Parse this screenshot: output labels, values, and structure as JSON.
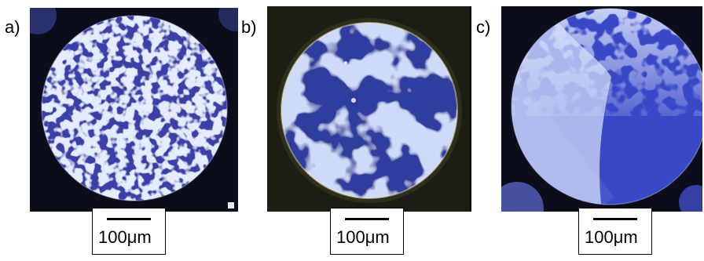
{
  "figure": {
    "panels": [
      {
        "label": "a)",
        "scale_text": "100μm"
      },
      {
        "label": "b)",
        "scale_text": "100μm"
      },
      {
        "label": "c)",
        "scale_text": "100μm"
      }
    ],
    "colors": {
      "background": "#0b0d1a",
      "dark_domain": "#2b3a9c",
      "light_domain": "#9fb0e8",
      "crystal_blue": "#3f4fc4"
    }
  }
}
